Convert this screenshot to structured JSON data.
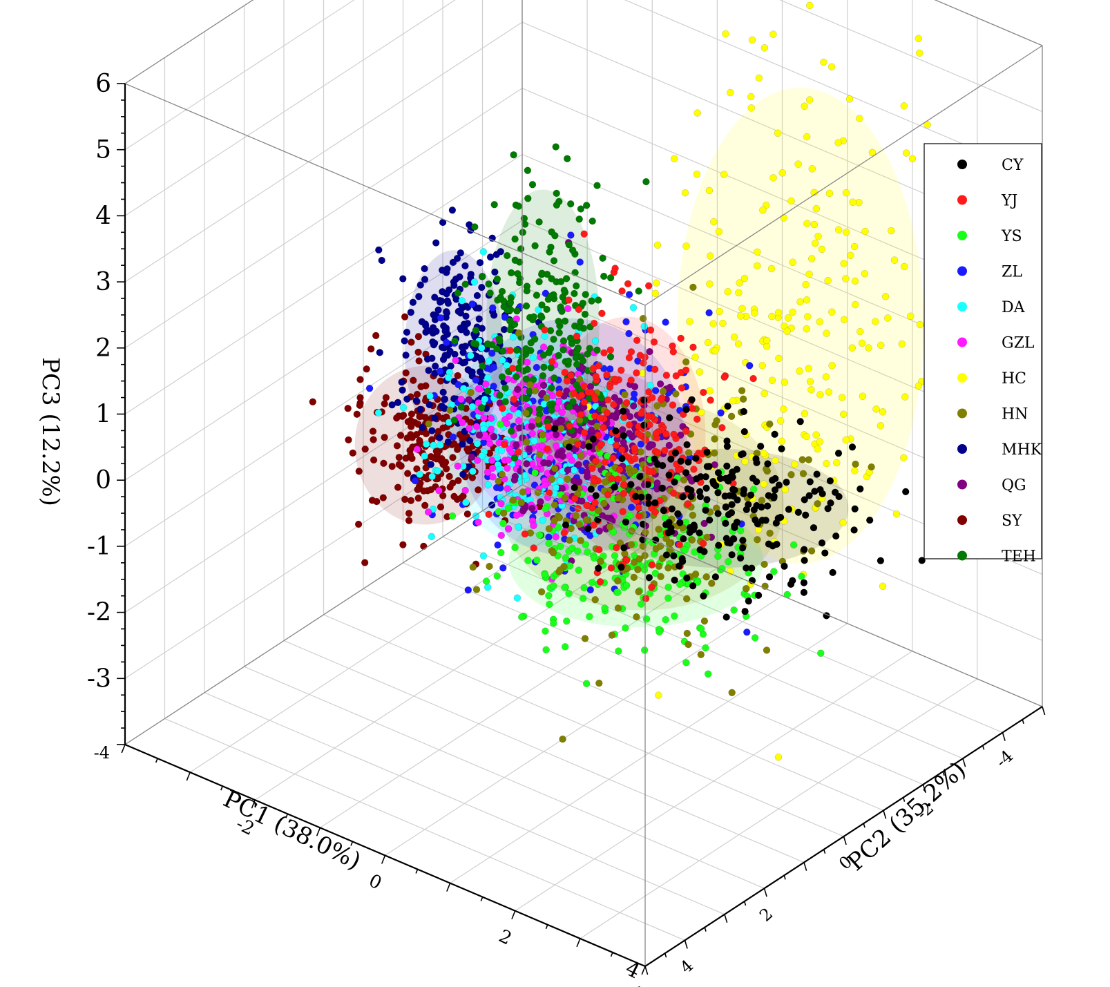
{
  "chart_data": {
    "type": "scatter",
    "projection": "3d",
    "title": "",
    "axes": {
      "x": {
        "label": "PC1 (38.0%)",
        "range": [
          -4,
          4
        ],
        "ticks": [
          -2,
          0,
          2,
          4
        ]
      },
      "y": {
        "label": "PC2 (35.2%)",
        "range": [
          -5,
          5
        ],
        "ticks": [
          -4,
          -2,
          0,
          2,
          4
        ]
      },
      "z": {
        "label": "PC3 (12.2%)",
        "range": [
          -4,
          6
        ],
        "ticks": [
          -3,
          -2,
          -1,
          0,
          1,
          2,
          3,
          4,
          5,
          6
        ]
      }
    },
    "corner_tick_labels": [
      "-4",
      "4"
    ],
    "grid": true,
    "legend_position": "top-right",
    "confidence_ellipsoids": true,
    "series": [
      {
        "name": "CY",
        "color": "#000000",
        "center": [
          1.2,
          -1.5,
          -0.8
        ],
        "spread": [
          0.9,
          0.9,
          0.45
        ]
      },
      {
        "name": "YJ",
        "color": "#ff1a1a",
        "center": [
          0.8,
          0.2,
          0.8
        ],
        "spread": [
          0.55,
          0.7,
          0.9
        ]
      },
      {
        "name": "YS",
        "color": "#1aff1a",
        "center": [
          0.5,
          -0.5,
          -1.5
        ],
        "spread": [
          0.9,
          0.9,
          0.5
        ]
      },
      {
        "name": "ZL",
        "color": "#1a1aff",
        "center": [
          0.3,
          0.8,
          0.8
        ],
        "spread": [
          0.8,
          1.0,
          0.9
        ]
      },
      {
        "name": "DA",
        "color": "#1affff",
        "center": [
          -0.5,
          0.5,
          0.3
        ],
        "spread": [
          0.6,
          0.7,
          0.8
        ]
      },
      {
        "name": "GZL",
        "color": "#ff1aff",
        "center": [
          -0.6,
          0.2,
          0.2
        ],
        "spread": [
          0.5,
          0.6,
          0.6
        ]
      },
      {
        "name": "HC",
        "color": "#ffff00",
        "center": [
          1.5,
          -3.0,
          1.5
        ],
        "spread": [
          0.7,
          1.3,
          1.8
        ]
      },
      {
        "name": "HN",
        "color": "#808000",
        "center": [
          0.6,
          -0.5,
          -0.6
        ],
        "spread": [
          1.0,
          1.2,
          0.8
        ]
      },
      {
        "name": "MHK",
        "color": "#00008b",
        "center": [
          -1.2,
          1.3,
          1.7
        ],
        "spread": [
          0.35,
          0.45,
          0.75
        ]
      },
      {
        "name": "QG",
        "color": "#800080",
        "center": [
          0.3,
          0.0,
          0.3
        ],
        "spread": [
          0.6,
          0.6,
          0.6
        ]
      },
      {
        "name": "SY",
        "color": "#800000",
        "center": [
          -1.7,
          1.2,
          0.0
        ],
        "spread": [
          0.5,
          0.5,
          0.6
        ]
      },
      {
        "name": "TEH",
        "color": "#007a00",
        "center": [
          -0.2,
          0.7,
          2.3
        ],
        "spread": [
          0.4,
          0.5,
          1.0
        ]
      }
    ]
  }
}
